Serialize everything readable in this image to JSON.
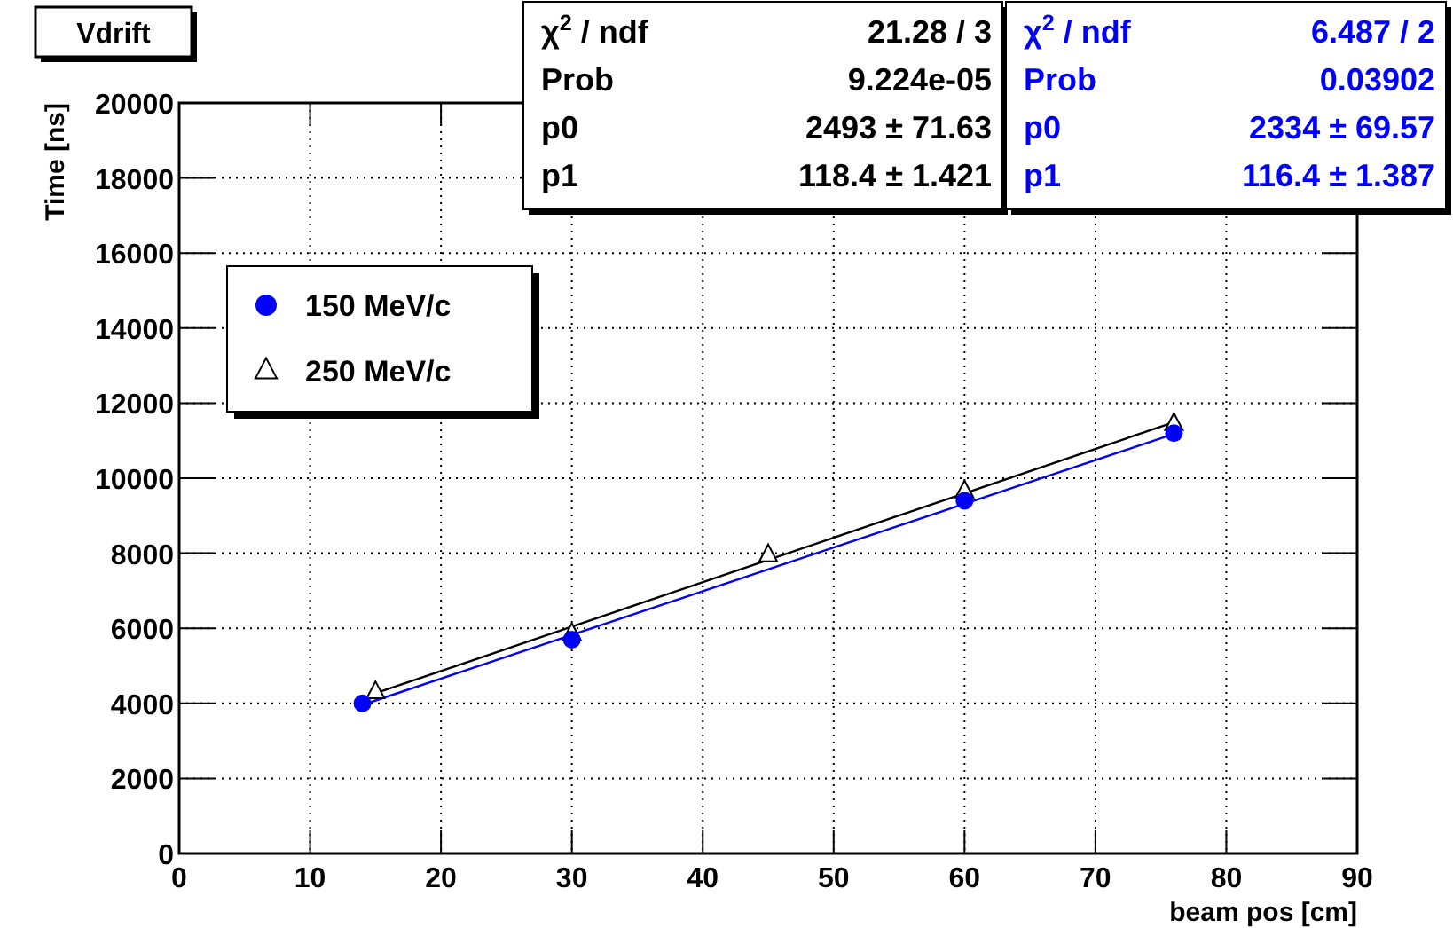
{
  "chart_data": {
    "type": "scatter",
    "title": "Vdrift",
    "xlabel": "beam pos [cm]",
    "ylabel": "Time [ns]",
    "xlim": [
      0,
      90
    ],
    "xticks": [
      0,
      10,
      20,
      30,
      40,
      50,
      60,
      70,
      80,
      90
    ],
    "ylim": [
      0,
      20000
    ],
    "yticks": [
      0,
      2000,
      4000,
      6000,
      8000,
      10000,
      12000,
      14000,
      16000,
      18000,
      20000
    ],
    "grid": true,
    "legend": "top left",
    "series": [
      {
        "name": "150 MeV/c",
        "color": "#0000ff",
        "marker": "circle",
        "x": [
          14,
          30,
          60,
          76
        ],
        "values": [
          4000,
          5700,
          9400,
          11200
        ]
      },
      {
        "name": "250 MeV/c",
        "color": "#000000",
        "marker": "triangle",
        "x": [
          15,
          30,
          45,
          60,
          76
        ],
        "values": [
          4300,
          5850,
          7950,
          9650,
          11450
        ]
      },
      {
        "type": "line",
        "color": "#000000",
        "marker": "none",
        "x": [
          15,
          76
        ],
        "values": [
          4270,
          11490
        ]
      },
      {
        "type": "line",
        "color": "#0000ff",
        "marker": "none",
        "x": [
          14,
          76
        ],
        "values": [
          3960,
          11180
        ]
      }
    ],
    "annotations": [
      "χ$^{2}$ / ndf",
      "21.28 / 3",
      "Prob",
      "9.224e-05",
      "p0",
      "2493 ± 71.63",
      "p1",
      "118.4 ± 1.421",
      "χ$^{2}$ / ndf",
      "6.487 / 2",
      "Prob",
      "0.03902",
      "p0",
      "2334 ± 69.57",
      "p1",
      "116.4 ± 1.387"
    ]
  }
}
